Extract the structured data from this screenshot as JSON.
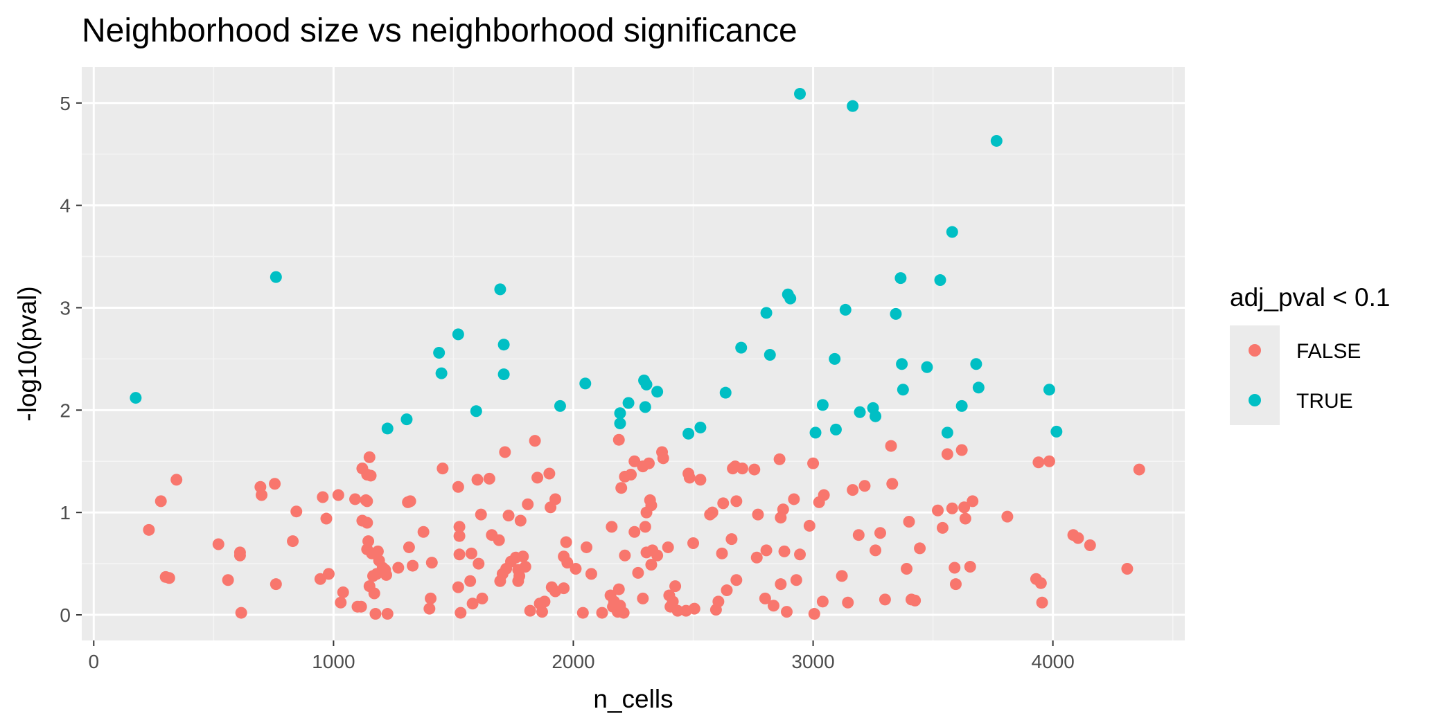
{
  "chart_data": {
    "type": "scatter",
    "title": "Neighborhood size vs neighborhood significance",
    "xlabel": "n_cells",
    "ylabel": "-log10(pval)",
    "xlim": [
      -50,
      4550
    ],
    "ylim": [
      -0.25,
      5.35
    ],
    "x_ticks": [
      0,
      1000,
      2000,
      3000,
      4000
    ],
    "x_tick_labels": [
      "0",
      "1000",
      "2000",
      "3000",
      "4000"
    ],
    "y_ticks": [
      0,
      1,
      2,
      3,
      4,
      5
    ],
    "y_tick_labels": [
      "0",
      "1",
      "2",
      "3",
      "4",
      "5"
    ],
    "grid": true,
    "legend": {
      "title": "adj_pval < 0.1",
      "position": "right",
      "entries": [
        {
          "label": "FALSE",
          "color": "#F8766D"
        },
        {
          "label": "TRUE",
          "color": "#00BFC4"
        }
      ]
    },
    "series": [
      {
        "name": "TRUE",
        "color": "#00BFC4",
        "points": [
          [
            175,
            2.12
          ],
          [
            760,
            3.3
          ],
          [
            1225,
            1.82
          ],
          [
            1305,
            1.91
          ],
          [
            1440,
            2.56
          ],
          [
            1450,
            2.36
          ],
          [
            1520,
            2.74
          ],
          [
            1595,
            1.99
          ],
          [
            1695,
            3.18
          ],
          [
            1710,
            2.64
          ],
          [
            1710,
            2.35
          ],
          [
            1945,
            2.04
          ],
          [
            2050,
            2.26
          ],
          [
            2195,
            1.97
          ],
          [
            2195,
            1.87
          ],
          [
            2230,
            2.07
          ],
          [
            2295,
            2.29
          ],
          [
            2305,
            2.25
          ],
          [
            2300,
            2.03
          ],
          [
            2350,
            2.18
          ],
          [
            2480,
            1.77
          ],
          [
            2530,
            1.83
          ],
          [
            2635,
            2.17
          ],
          [
            2700,
            2.61
          ],
          [
            2805,
            2.95
          ],
          [
            2820,
            2.54
          ],
          [
            2895,
            3.13
          ],
          [
            2905,
            3.09
          ],
          [
            2945,
            5.09
          ],
          [
            3010,
            1.78
          ],
          [
            3040,
            2.05
          ],
          [
            3090,
            2.5
          ],
          [
            3095,
            1.81
          ],
          [
            3135,
            2.98
          ],
          [
            3165,
            4.97
          ],
          [
            3195,
            1.98
          ],
          [
            3250,
            2.02
          ],
          [
            3260,
            1.94
          ],
          [
            3345,
            2.94
          ],
          [
            3365,
            3.29
          ],
          [
            3370,
            2.45
          ],
          [
            3375,
            2.2
          ],
          [
            3475,
            2.42
          ],
          [
            3530,
            3.27
          ],
          [
            3560,
            1.78
          ],
          [
            3580,
            3.74
          ],
          [
            3620,
            2.04
          ],
          [
            3680,
            2.45
          ],
          [
            3690,
            2.22
          ],
          [
            3765,
            4.63
          ],
          [
            3985,
            2.2
          ],
          [
            4015,
            1.79
          ]
        ]
      },
      {
        "name": "FALSE",
        "color": "#F8766D",
        "points": [
          [
            230,
            0.83
          ],
          [
            280,
            1.11
          ],
          [
            300,
            0.37
          ],
          [
            315,
            0.36
          ],
          [
            345,
            1.32
          ],
          [
            520,
            0.69
          ],
          [
            560,
            0.34
          ],
          [
            610,
            0.61
          ],
          [
            610,
            0.58
          ],
          [
            615,
            0.02
          ],
          [
            695,
            1.25
          ],
          [
            700,
            1.17
          ],
          [
            755,
            1.28
          ],
          [
            760,
            0.3
          ],
          [
            830,
            0.72
          ],
          [
            845,
            1.01
          ],
          [
            945,
            0.35
          ],
          [
            955,
            1.15
          ],
          [
            970,
            0.94
          ],
          [
            980,
            0.4
          ],
          [
            1020,
            1.17
          ],
          [
            1030,
            0.12
          ],
          [
            1040,
            0.22
          ],
          [
            1090,
            1.13
          ],
          [
            1100,
            0.08
          ],
          [
            1115,
            0.08
          ],
          [
            1120,
            1.43
          ],
          [
            1120,
            0.92
          ],
          [
            1135,
            1.12
          ],
          [
            1140,
            1.37
          ],
          [
            1140,
            1.11
          ],
          [
            1140,
            0.9
          ],
          [
            1140,
            0.64
          ],
          [
            1145,
            0.72
          ],
          [
            1150,
            0.28
          ],
          [
            1150,
            1.54
          ],
          [
            1155,
            1.36
          ],
          [
            1160,
            0.6
          ],
          [
            1165,
            0.38
          ],
          [
            1170,
            0.21
          ],
          [
            1175,
            0.01
          ],
          [
            1180,
            0.4
          ],
          [
            1185,
            0.62
          ],
          [
            1190,
            0.53
          ],
          [
            1205,
            0.46
          ],
          [
            1215,
            0.44
          ],
          [
            1220,
            0.39
          ],
          [
            1225,
            0.01
          ],
          [
            1270,
            0.46
          ],
          [
            1310,
            1.1
          ],
          [
            1315,
            0.66
          ],
          [
            1320,
            1.11
          ],
          [
            1330,
            0.48
          ],
          [
            1375,
            0.81
          ],
          [
            1400,
            0.06
          ],
          [
            1405,
            0.16
          ],
          [
            1410,
            0.51
          ],
          [
            1455,
            1.43
          ],
          [
            1520,
            1.25
          ],
          [
            1520,
            0.27
          ],
          [
            1525,
            0.86
          ],
          [
            1525,
            0.77
          ],
          [
            1525,
            0.59
          ],
          [
            1530,
            0.02
          ],
          [
            1570,
            0.33
          ],
          [
            1575,
            0.6
          ],
          [
            1580,
            0.11
          ],
          [
            1600,
            1.32
          ],
          [
            1605,
            0.5
          ],
          [
            1615,
            0.98
          ],
          [
            1620,
            0.16
          ],
          [
            1650,
            1.33
          ],
          [
            1660,
            0.78
          ],
          [
            1690,
            0.73
          ],
          [
            1695,
            0.33
          ],
          [
            1705,
            0.4
          ],
          [
            1715,
            1.59
          ],
          [
            1720,
            0.45
          ],
          [
            1730,
            0.97
          ],
          [
            1740,
            0.52
          ],
          [
            1760,
            0.56
          ],
          [
            1770,
            0.44
          ],
          [
            1770,
            0.33
          ],
          [
            1775,
            0.38
          ],
          [
            1780,
            0.92
          ],
          [
            1790,
            0.57
          ],
          [
            1800,
            0.47
          ],
          [
            1810,
            1.08
          ],
          [
            1820,
            0.04
          ],
          [
            1840,
            1.7
          ],
          [
            1850,
            1.34
          ],
          [
            1860,
            0.11
          ],
          [
            1870,
            0.03
          ],
          [
            1880,
            0.13
          ],
          [
            1900,
            1.38
          ],
          [
            1905,
            1.05
          ],
          [
            1910,
            0.27
          ],
          [
            1925,
            1.13
          ],
          [
            1925,
            0.23
          ],
          [
            1960,
            0.57
          ],
          [
            1960,
            0.26
          ],
          [
            1970,
            0.71
          ],
          [
            1975,
            0.51
          ],
          [
            2010,
            0.45
          ],
          [
            2040,
            0.02
          ],
          [
            2055,
            0.66
          ],
          [
            2075,
            0.4
          ],
          [
            2120,
            0.02
          ],
          [
            2155,
            0.19
          ],
          [
            2160,
            0.86
          ],
          [
            2165,
            0.08
          ],
          [
            2170,
            0.13
          ],
          [
            2185,
            0.03
          ],
          [
            2190,
            0.25
          ],
          [
            2190,
            1.71
          ],
          [
            2195,
            0.09
          ],
          [
            2200,
            1.24
          ],
          [
            2210,
            0.02
          ],
          [
            2215,
            1.35
          ],
          [
            2215,
            0.58
          ],
          [
            2240,
            1.37
          ],
          [
            2255,
            1.5
          ],
          [
            2255,
            0.81
          ],
          [
            2270,
            0.41
          ],
          [
            2290,
            0.16
          ],
          [
            2290,
            1.45
          ],
          [
            2300,
            0.86
          ],
          [
            2305,
            0.61
          ],
          [
            2305,
            1.0
          ],
          [
            2315,
            1.48
          ],
          [
            2320,
            1.12
          ],
          [
            2325,
            0.49
          ],
          [
            2325,
            1.07
          ],
          [
            2330,
            0.63
          ],
          [
            2350,
            0.58
          ],
          [
            2370,
            1.59
          ],
          [
            2375,
            1.53
          ],
          [
            2395,
            0.66
          ],
          [
            2400,
            0.19
          ],
          [
            2405,
            0.08
          ],
          [
            2415,
            0.13
          ],
          [
            2425,
            0.28
          ],
          [
            2435,
            0.04
          ],
          [
            2470,
            0.04
          ],
          [
            2480,
            1.38
          ],
          [
            2485,
            1.34
          ],
          [
            2500,
            0.7
          ],
          [
            2505,
            0.06
          ],
          [
            2530,
            1.32
          ],
          [
            2570,
            0.98
          ],
          [
            2580,
            1.0
          ],
          [
            2595,
            0.05
          ],
          [
            2605,
            0.13
          ],
          [
            2620,
            0.6
          ],
          [
            2625,
            1.09
          ],
          [
            2640,
            0.24
          ],
          [
            2660,
            0.74
          ],
          [
            2665,
            1.43
          ],
          [
            2675,
            1.45
          ],
          [
            2680,
            0.34
          ],
          [
            2680,
            1.11
          ],
          [
            2705,
            1.43
          ],
          [
            2755,
            1.42
          ],
          [
            2765,
            0.56
          ],
          [
            2770,
            0.98
          ],
          [
            2800,
            0.16
          ],
          [
            2805,
            0.63
          ],
          [
            2835,
            0.09
          ],
          [
            2860,
            1.52
          ],
          [
            2865,
            0.3
          ],
          [
            2865,
            0.95
          ],
          [
            2875,
            1.03
          ],
          [
            2880,
            0.62
          ],
          [
            2890,
            0.03
          ],
          [
            2920,
            1.13
          ],
          [
            2930,
            0.34
          ],
          [
            2945,
            0.59
          ],
          [
            2985,
            0.87
          ],
          [
            3000,
            1.48
          ],
          [
            3005,
            0.01
          ],
          [
            3025,
            1.1
          ],
          [
            3040,
            0.13
          ],
          [
            3045,
            1.17
          ],
          [
            3120,
            0.38
          ],
          [
            3145,
            0.12
          ],
          [
            3165,
            1.22
          ],
          [
            3190,
            0.78
          ],
          [
            3215,
            1.26
          ],
          [
            3260,
            0.63
          ],
          [
            3280,
            0.8
          ],
          [
            3300,
            0.15
          ],
          [
            3325,
            1.65
          ],
          [
            3330,
            1.28
          ],
          [
            3390,
            0.45
          ],
          [
            3400,
            0.91
          ],
          [
            3410,
            0.15
          ],
          [
            3425,
            0.14
          ],
          [
            3445,
            0.65
          ],
          [
            3520,
            1.02
          ],
          [
            3540,
            0.85
          ],
          [
            3560,
            1.57
          ],
          [
            3580,
            1.04
          ],
          [
            3590,
            0.46
          ],
          [
            3595,
            0.3
          ],
          [
            3620,
            1.61
          ],
          [
            3630,
            1.05
          ],
          [
            3635,
            0.94
          ],
          [
            3655,
            0.47
          ],
          [
            3665,
            1.11
          ],
          [
            3810,
            0.96
          ],
          [
            3930,
            0.35
          ],
          [
            3940,
            1.49
          ],
          [
            3950,
            0.31
          ],
          [
            3955,
            0.12
          ],
          [
            3985,
            1.5
          ],
          [
            4085,
            0.78
          ],
          [
            4105,
            0.75
          ],
          [
            4155,
            0.68
          ],
          [
            4310,
            0.45
          ],
          [
            4360,
            1.42
          ]
        ]
      }
    ]
  }
}
